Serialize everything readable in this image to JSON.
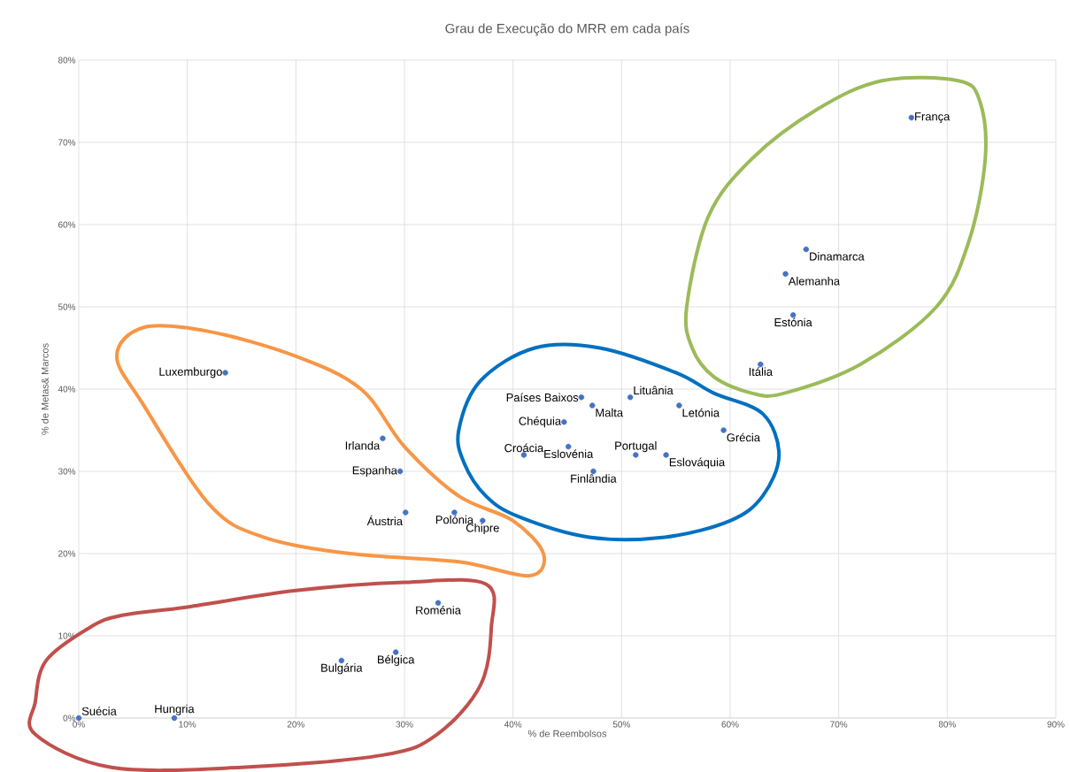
{
  "chart_data": {
    "type": "scatter",
    "title": "Grau de Execução do MRR em cada país",
    "xlabel": "% de Reembolsos",
    "ylabel": "% de Metas& Marcos",
    "color": "#4472c4",
    "marker": "circle",
    "grid": true,
    "x": [
      0,
      8.8,
      13.5,
      28,
      29.6,
      30.1,
      34.6,
      37.2,
      33.1,
      24.2,
      29.2,
      46.3,
      47.3,
      50.8,
      55.3,
      44.7,
      45.1,
      41,
      47.4,
      51.3,
      54.1,
      59.4,
      76.7,
      67,
      65.1,
      65.8,
      62.8
    ],
    "values": [
      0,
      0,
      42,
      34,
      30,
      25,
      25,
      24,
      14,
      7,
      8,
      39,
      38,
      39,
      38,
      36,
      33,
      32,
      30,
      32,
      32,
      35,
      73,
      57,
      54,
      49,
      43
    ],
    "xlim": [
      0,
      90
    ],
    "ylim": [
      0,
      80
    ],
    "xticks": [
      {
        "value": 0,
        "label": "0%"
      },
      {
        "value": 10,
        "label": "10%"
      },
      {
        "value": 20,
        "label": "20%"
      },
      {
        "value": 30,
        "label": "30%"
      },
      {
        "value": 40,
        "label": "40%"
      },
      {
        "value": 50,
        "label": "50%"
      },
      {
        "value": 60,
        "label": "60%"
      },
      {
        "value": 70,
        "label": "70%"
      },
      {
        "value": 80,
        "label": "80%"
      },
      {
        "value": 90,
        "label": "90%"
      }
    ],
    "yticks": [
      {
        "value": 0,
        "label": "0%"
      },
      {
        "value": 10,
        "label": "10%"
      },
      {
        "value": 20,
        "label": "20%"
      },
      {
        "value": 30,
        "label": "30%"
      },
      {
        "value": 40,
        "label": "40%"
      },
      {
        "value": 50,
        "label": "50%"
      },
      {
        "value": 60,
        "label": "60%"
      },
      {
        "value": 70,
        "label": "70%"
      },
      {
        "value": 80,
        "label": "80%"
      }
    ],
    "annotations": [
      {
        "text": "Suécia",
        "x": 0,
        "y": 0
      },
      {
        "text": "Hungria",
        "x": 8.8,
        "y": 0
      },
      {
        "text": "Luxemburgo",
        "x": 13.5,
        "y": 42
      },
      {
        "text": "Irlanda",
        "x": 28,
        "y": 34
      },
      {
        "text": "Espanha",
        "x": 29.6,
        "y": 30
      },
      {
        "text": "Áustria",
        "x": 30.1,
        "y": 25
      },
      {
        "text": "Polónia",
        "x": 34.6,
        "y": 25
      },
      {
        "text": "Chipre",
        "x": 37.2,
        "y": 24
      },
      {
        "text": "Roménia",
        "x": 33.1,
        "y": 14
      },
      {
        "text": "Bulgária",
        "x": 24.2,
        "y": 7
      },
      {
        "text": "Bélgica",
        "x": 29.2,
        "y": 8
      },
      {
        "text": "Países Baixos",
        "x": 46.3,
        "y": 39
      },
      {
        "text": "Malta",
        "x": 47.3,
        "y": 38
      },
      {
        "text": "Lituânia",
        "x": 50.8,
        "y": 39
      },
      {
        "text": "Letónia",
        "x": 55.3,
        "y": 38
      },
      {
        "text": "Chéquia",
        "x": 44.7,
        "y": 36
      },
      {
        "text": "Eslovénia",
        "x": 45.1,
        "y": 33
      },
      {
        "text": "Croácia",
        "x": 41,
        "y": 32
      },
      {
        "text": "Finlândia",
        "x": 47.4,
        "y": 30
      },
      {
        "text": "Portugal",
        "x": 51.3,
        "y": 32
      },
      {
        "text": "Eslováquia",
        "x": 54.1,
        "y": 32
      },
      {
        "text": "Grécia",
        "x": 59.4,
        "y": 35
      },
      {
        "text": "França",
        "x": 76.7,
        "y": 73
      },
      {
        "text": "Dinamarca",
        "x": 67,
        "y": 57
      },
      {
        "text": "Alemanha",
        "x": 65.1,
        "y": 54
      },
      {
        "text": "Estónia",
        "x": 65.8,
        "y": 49
      },
      {
        "text": "Itália",
        "x": 62.8,
        "y": 43
      }
    ]
  }
}
